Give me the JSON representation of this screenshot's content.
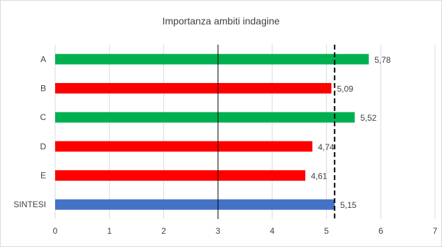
{
  "chart_data": {
    "type": "bar",
    "orientation": "horizontal",
    "title": "Importanza ambiti indagine",
    "categories": [
      "A",
      "B",
      "C",
      "D",
      "E",
      "SINTESI"
    ],
    "values": [
      5.78,
      5.09,
      5.52,
      4.74,
      4.61,
      5.15
    ],
    "value_labels": [
      "5,78",
      "5,09",
      "5,52",
      "4,74",
      "4,61",
      "5,15"
    ],
    "bar_colors": [
      "#00b050",
      "#ff0000",
      "#00b050",
      "#ff0000",
      "#ff0000",
      "#4472c4"
    ],
    "xlim": [
      0,
      7
    ],
    "x_ticks": [
      "0",
      "1",
      "2",
      "3",
      "4",
      "5",
      "6",
      "7"
    ],
    "grid": "vertical",
    "reference_lines": [
      {
        "value": 3,
        "style": "solid",
        "color": "#000000"
      },
      {
        "value": 5.15,
        "style": "dashed",
        "color": "#000000"
      }
    ],
    "legend": "none"
  }
}
